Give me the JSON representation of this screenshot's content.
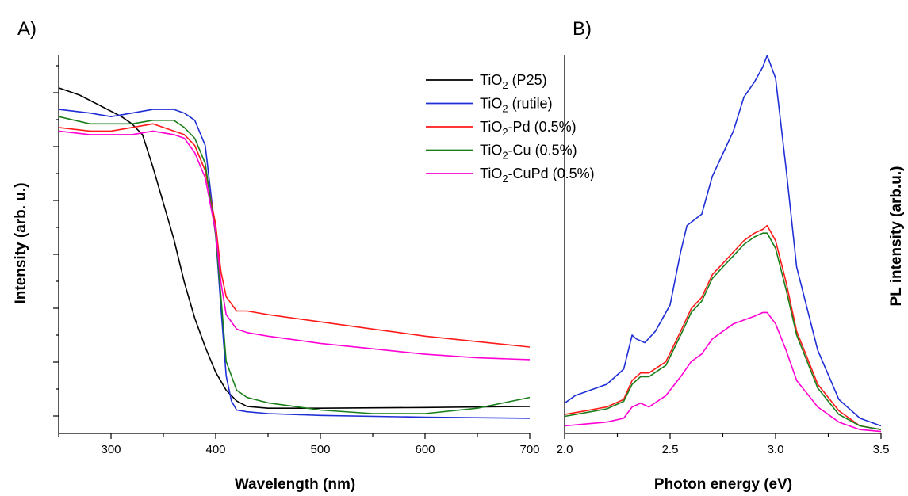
{
  "chart_data": [
    {
      "panel_label": "A)",
      "type": "line",
      "xlabel": "Wavelength (nm)",
      "ylabel": "Intensity (arb. u.)",
      "xlim": [
        250,
        700
      ],
      "ylim": [
        0,
        1.05
      ],
      "xticks": [
        "300",
        "400",
        "500",
        "600",
        "700"
      ],
      "xtick_values": [
        300,
        400,
        500,
        600,
        700
      ],
      "y_tick_labels_shown": false,
      "grid": false,
      "legend": "top-right",
      "series": [
        {
          "name": "TiO",
          "name_sub": "2",
          "name_rest": " (P25)",
          "color": "#000000",
          "x": [
            250,
            270,
            290,
            310,
            320,
            330,
            340,
            350,
            360,
            370,
            380,
            390,
            400,
            410,
            420,
            430,
            450,
            500,
            600,
            700
          ],
          "y": [
            0.96,
            0.94,
            0.91,
            0.88,
            0.86,
            0.83,
            0.74,
            0.64,
            0.54,
            0.42,
            0.32,
            0.24,
            0.17,
            0.12,
            0.09,
            0.075,
            0.07,
            0.07,
            0.072,
            0.075
          ]
        },
        {
          "name": "TiO",
          "name_sub": "2",
          "name_rest": " (rutile)",
          "color": "#1f2fd6",
          "x": [
            250,
            280,
            300,
            320,
            340,
            360,
            370,
            380,
            390,
            400,
            405,
            410,
            415,
            420,
            430,
            450,
            500,
            600,
            700
          ],
          "y": [
            0.9,
            0.89,
            0.88,
            0.89,
            0.9,
            0.9,
            0.89,
            0.87,
            0.8,
            0.55,
            0.35,
            0.16,
            0.09,
            0.065,
            0.06,
            0.055,
            0.05,
            0.045,
            0.042
          ]
        },
        {
          "name": "TiO",
          "name_sub": "2",
          "name_rest": "-Pd (0.5%)",
          "color": "#ff1a1a",
          "x": [
            250,
            280,
            300,
            320,
            340,
            360,
            370,
            380,
            390,
            400,
            405,
            410,
            420,
            430,
            450,
            500,
            550,
            600,
            650,
            700
          ],
          "y": [
            0.85,
            0.84,
            0.84,
            0.85,
            0.86,
            0.84,
            0.83,
            0.8,
            0.73,
            0.58,
            0.45,
            0.38,
            0.34,
            0.34,
            0.33,
            0.31,
            0.29,
            0.27,
            0.255,
            0.24
          ]
        },
        {
          "name": "TiO",
          "name_sub": "2",
          "name_rest": "-Cu (0.5%)",
          "color": "#1a7f1a",
          "x": [
            250,
            280,
            300,
            320,
            340,
            360,
            370,
            380,
            390,
            400,
            405,
            410,
            420,
            430,
            450,
            500,
            550,
            600,
            650,
            700
          ],
          "y": [
            0.88,
            0.86,
            0.86,
            0.86,
            0.87,
            0.87,
            0.85,
            0.82,
            0.75,
            0.55,
            0.38,
            0.2,
            0.12,
            0.1,
            0.085,
            0.065,
            0.055,
            0.055,
            0.07,
            0.1
          ]
        },
        {
          "name": "TiO",
          "name_sub": "2",
          "name_rest": "-CuPd (0.5%)",
          "color": "#ff00d4",
          "x": [
            250,
            280,
            300,
            320,
            340,
            360,
            370,
            380,
            390,
            400,
            405,
            410,
            420,
            430,
            450,
            500,
            550,
            600,
            650,
            700
          ],
          "y": [
            0.84,
            0.83,
            0.83,
            0.83,
            0.84,
            0.83,
            0.82,
            0.78,
            0.71,
            0.56,
            0.42,
            0.33,
            0.29,
            0.28,
            0.27,
            0.25,
            0.235,
            0.22,
            0.21,
            0.205
          ]
        }
      ]
    },
    {
      "panel_label": "B)",
      "type": "line",
      "xlabel": "Photon energy (eV)",
      "ylabel": "PL intensity (arb.u.)",
      "xlim": [
        2.0,
        3.5
      ],
      "ylim": [
        0,
        1.0
      ],
      "xticks": [
        "2.0",
        "2.5",
        "3.0",
        "3.5"
      ],
      "xtick_values": [
        2.0,
        2.5,
        3.0,
        3.5
      ],
      "y_tick_labels_shown": false,
      "grid": false,
      "series": [
        {
          "color": "#1f2fd6",
          "x": [
            2.0,
            2.05,
            2.1,
            2.2,
            2.28,
            2.32,
            2.34,
            2.38,
            2.43,
            2.5,
            2.55,
            2.58,
            2.65,
            2.7,
            2.75,
            2.8,
            2.85,
            2.9,
            2.94,
            2.96,
            3.0,
            3.05,
            3.1,
            3.2,
            3.3,
            3.4,
            3.5
          ],
          "y": [
            0.08,
            0.1,
            0.11,
            0.13,
            0.17,
            0.26,
            0.25,
            0.24,
            0.27,
            0.34,
            0.48,
            0.55,
            0.58,
            0.68,
            0.74,
            0.8,
            0.89,
            0.93,
            0.97,
            1.0,
            0.94,
            0.7,
            0.44,
            0.22,
            0.09,
            0.04,
            0.02
          ]
        },
        {
          "color": "#ff1a1a",
          "x": [
            2.0,
            2.1,
            2.2,
            2.28,
            2.32,
            2.36,
            2.4,
            2.48,
            2.55,
            2.6,
            2.65,
            2.7,
            2.75,
            2.8,
            2.85,
            2.9,
            2.94,
            2.96,
            3.0,
            3.05,
            3.1,
            3.2,
            3.3,
            3.4,
            3.5
          ],
          "y": [
            0.05,
            0.06,
            0.07,
            0.09,
            0.14,
            0.16,
            0.16,
            0.19,
            0.27,
            0.33,
            0.36,
            0.42,
            0.45,
            0.48,
            0.51,
            0.53,
            0.54,
            0.55,
            0.51,
            0.4,
            0.27,
            0.13,
            0.06,
            0.02,
            0.01
          ]
        },
        {
          "color": "#1a7f1a",
          "x": [
            2.0,
            2.1,
            2.2,
            2.28,
            2.32,
            2.36,
            2.4,
            2.48,
            2.55,
            2.6,
            2.65,
            2.7,
            2.75,
            2.8,
            2.85,
            2.9,
            2.94,
            2.96,
            3.0,
            3.05,
            3.1,
            3.2,
            3.3,
            3.4,
            3.5
          ],
          "y": [
            0.045,
            0.055,
            0.065,
            0.085,
            0.13,
            0.15,
            0.15,
            0.18,
            0.26,
            0.32,
            0.35,
            0.41,
            0.44,
            0.47,
            0.5,
            0.52,
            0.53,
            0.53,
            0.49,
            0.38,
            0.26,
            0.12,
            0.05,
            0.02,
            0.01
          ]
        },
        {
          "color": "#ff00d4",
          "x": [
            2.0,
            2.1,
            2.2,
            2.28,
            2.32,
            2.36,
            2.4,
            2.48,
            2.55,
            2.6,
            2.65,
            2.7,
            2.75,
            2.8,
            2.85,
            2.9,
            2.94,
            2.96,
            3.0,
            3.05,
            3.1,
            3.2,
            3.3,
            3.4,
            3.5
          ],
          "y": [
            0.02,
            0.025,
            0.03,
            0.04,
            0.07,
            0.08,
            0.07,
            0.1,
            0.15,
            0.19,
            0.21,
            0.25,
            0.27,
            0.29,
            0.3,
            0.31,
            0.32,
            0.32,
            0.29,
            0.22,
            0.14,
            0.07,
            0.03,
            0.01,
            0.005
          ]
        }
      ]
    }
  ]
}
